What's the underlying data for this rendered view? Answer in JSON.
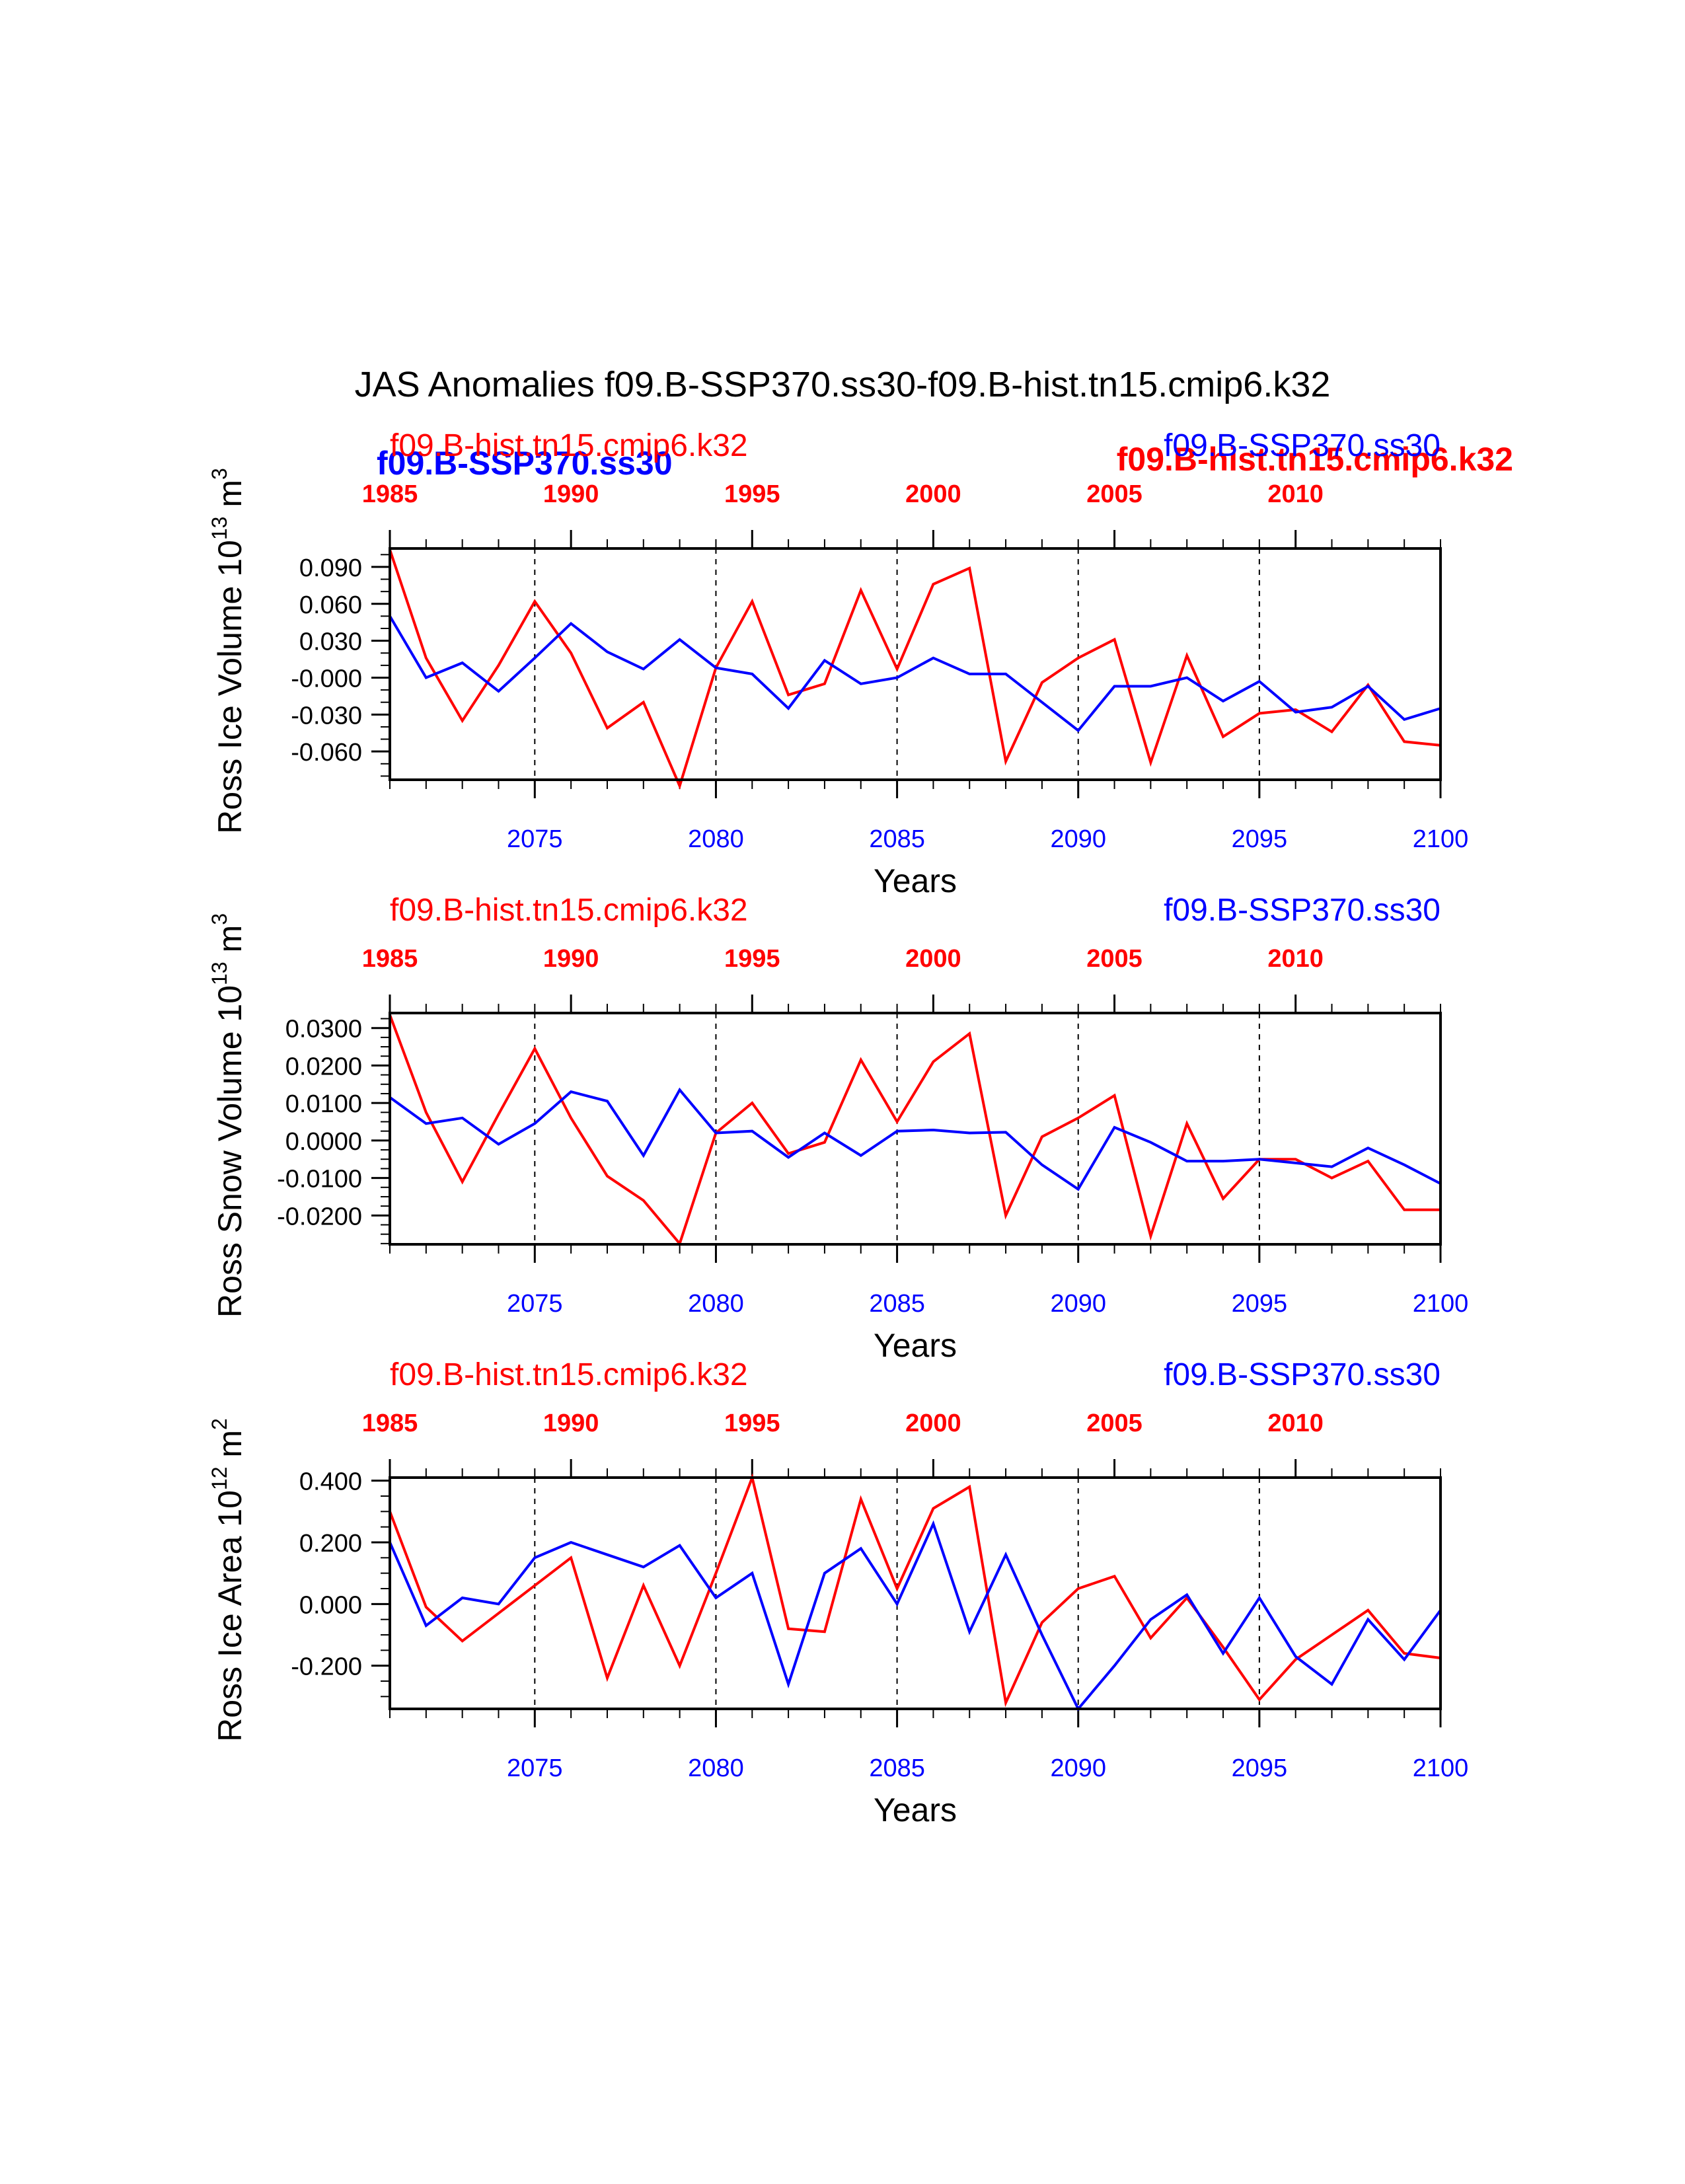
{
  "title": "JAS Anomalies f09.B-SSP370.ss30-f09.B-hist.tn15.cmip6.k32",
  "overlay_labels": {
    "blue_bold": "f09.B-SSP370.ss30",
    "red_bold": "f09.B-hist.tn15.cmip6.k32"
  },
  "colors": {
    "hist": "#ff0000",
    "ssp": "#0000ff",
    "axes": "#000000"
  },
  "chart_data": [
    {
      "type": "line",
      "ylabel": "Ross Ice Volume 10",
      "ylabel_exp": "13",
      "ylabel_unit_base": " m",
      "ylabel_unit_exp": "3",
      "xlabel": "Years",
      "left_title": "f09.B-hist.tn15.cmip6.k32",
      "right_title": "f09.B-SSP370.ss30",
      "ylim": [
        -0.083,
        0.105
      ],
      "yticks": [
        0.09,
        0.06,
        0.03,
        0.0,
        -0.03,
        -0.06
      ],
      "ytick_labels": [
        "0.090",
        "0.060",
        "0.030",
        "-0.000",
        "-0.030",
        "-0.060"
      ],
      "yminor_step": 0.01,
      "bottom_x": {
        "range": [
          2071,
          2100
        ],
        "ticks": [
          2075,
          2080,
          2085,
          2090,
          2095,
          2100
        ],
        "labels": [
          "2075",
          "2080",
          "2085",
          "2090",
          "2095",
          "2100"
        ]
      },
      "top_x": {
        "range": [
          1985,
          2014
        ],
        "ticks": [
          1985,
          1990,
          1995,
          2000,
          2005,
          2010
        ],
        "labels": [
          "1985",
          "1990",
          "1995",
          "2000",
          "2005",
          "2010"
        ]
      },
      "vlines": [
        2075,
        2080,
        2085,
        2090,
        2095
      ],
      "series": [
        {
          "name": "f09.B-hist.tn15.cmip6.k32",
          "color": "#ff0000",
          "years": [
            1985,
            1986,
            1987,
            1988,
            1989,
            1990,
            1991,
            1992,
            1993,
            1994,
            1995,
            1996,
            1997,
            1998,
            1999,
            2000,
            2001,
            2002,
            2003,
            2004,
            2005,
            2006,
            2007,
            2008,
            2009,
            2010,
            2011,
            2012,
            2013,
            2014
          ],
          "values": [
            0.104,
            0.016,
            -0.035,
            0.01,
            0.062,
            0.02,
            -0.041,
            -0.02,
            -0.088,
            0.008,
            0.062,
            -0.014,
            -0.005,
            0.071,
            0.007,
            0.076,
            0.089,
            -0.068,
            -0.004,
            0.016,
            0.031,
            -0.069,
            0.018,
            -0.048,
            -0.029,
            -0.026,
            -0.044,
            -0.006,
            -0.052,
            -0.055
          ]
        },
        {
          "name": "f09.B-SSP370.ss30",
          "color": "#0000ff",
          "years": [
            2071,
            2072,
            2073,
            2074,
            2075,
            2076,
            2077,
            2078,
            2079,
            2080,
            2081,
            2082,
            2083,
            2084,
            2085,
            2086,
            2087,
            2088,
            2089,
            2090,
            2091,
            2092,
            2093,
            2094,
            2095,
            2096,
            2097,
            2098,
            2099,
            2100
          ],
          "values": [
            0.05,
            0.0,
            0.012,
            -0.011,
            0.016,
            0.044,
            0.021,
            0.007,
            0.031,
            0.008,
            0.003,
            -0.025,
            0.014,
            -0.005,
            0.0,
            0.016,
            0.003,
            0.003,
            -0.02,
            -0.043,
            -0.007,
            -0.007,
            0.0,
            -0.019,
            -0.003,
            -0.028,
            -0.024,
            -0.007,
            -0.034,
            -0.025
          ]
        }
      ]
    },
    {
      "type": "line",
      "ylabel": "Ross Snow Volume 10",
      "ylabel_exp": "13",
      "ylabel_unit_base": " m",
      "ylabel_unit_exp": "3",
      "xlabel": "Years",
      "left_title": "f09.B-hist.tn15.cmip6.k32",
      "right_title": "f09.B-SSP370.ss30",
      "ylim": [
        -0.0277,
        0.034
      ],
      "yticks": [
        0.03,
        0.02,
        0.01,
        0.0,
        -0.01,
        -0.02
      ],
      "ytick_labels": [
        "0.0300",
        "0.0200",
        "0.0100",
        "0.0000",
        "-0.0100",
        "-0.0200"
      ],
      "yminor_step": 0.0025,
      "bottom_x": {
        "range": [
          2071,
          2100
        ],
        "ticks": [
          2075,
          2080,
          2085,
          2090,
          2095,
          2100
        ],
        "labels": [
          "2075",
          "2080",
          "2085",
          "2090",
          "2095",
          "2100"
        ]
      },
      "top_x": {
        "range": [
          1985,
          2014
        ],
        "ticks": [
          1985,
          1990,
          1995,
          2000,
          2005,
          2010
        ],
        "labels": [
          "1985",
          "1990",
          "1995",
          "2000",
          "2005",
          "2010"
        ]
      },
      "vlines": [
        2075,
        2080,
        2085,
        2090,
        2095
      ],
      "series": [
        {
          "name": "f09.B-hist.tn15.cmip6.k32",
          "color": "#ff0000",
          "years": [
            1985,
            1986,
            1987,
            1988,
            1989,
            1990,
            1991,
            1992,
            1993,
            1994,
            1995,
            1996,
            1997,
            1998,
            1999,
            2000,
            2001,
            2002,
            2003,
            2004,
            2005,
            2006,
            2007,
            2008,
            2009,
            2010,
            2011,
            2012,
            2013,
            2014
          ],
          "values": [
            0.0335,
            0.0075,
            -0.011,
            0.007,
            0.0245,
            0.006,
            -0.0095,
            -0.016,
            -0.0275,
            0.002,
            0.01,
            -0.0035,
            -0.0005,
            0.0215,
            0.005,
            0.021,
            0.0285,
            -0.02,
            0.001,
            0.006,
            0.012,
            -0.0255,
            0.0045,
            -0.0155,
            -0.005,
            -0.005,
            -0.01,
            -0.0055,
            -0.0185,
            -0.0185
          ]
        },
        {
          "name": "f09.B-SSP370.ss30",
          "color": "#0000ff",
          "years": [
            2071,
            2072,
            2073,
            2074,
            2075,
            2076,
            2077,
            2078,
            2079,
            2080,
            2081,
            2082,
            2083,
            2084,
            2085,
            2086,
            2087,
            2088,
            2089,
            2090,
            2091,
            2092,
            2093,
            2094,
            2095,
            2096,
            2097,
            2098,
            2099,
            2100
          ],
          "values": [
            0.0115,
            0.0045,
            0.006,
            -0.001,
            0.0045,
            0.013,
            0.0105,
            -0.004,
            0.0135,
            0.002,
            0.0025,
            -0.0045,
            0.002,
            -0.004,
            0.0025,
            0.0028,
            0.002,
            0.0022,
            -0.0065,
            -0.013,
            0.0035,
            -0.0005,
            -0.0055,
            -0.0055,
            -0.005,
            -0.006,
            -0.007,
            -0.002,
            -0.0065,
            -0.0115
          ]
        }
      ]
    },
    {
      "type": "line",
      "ylabel": "Ross Ice Area 10",
      "ylabel_exp": "12",
      "ylabel_unit_base": " m",
      "ylabel_unit_exp": "2",
      "xlabel": "Years",
      "left_title": "f09.B-hist.tn15.cmip6.k32",
      "right_title": "f09.B-SSP370.ss30",
      "ylim": [
        -0.34,
        0.41
      ],
      "yticks": [
        0.4,
        0.2,
        0.0,
        -0.2
      ],
      "ytick_labels": [
        "0.400",
        "0.200",
        "0.000",
        "-0.200"
      ],
      "yminor_step": 0.05,
      "bottom_x": {
        "range": [
          2071,
          2100
        ],
        "ticks": [
          2075,
          2080,
          2085,
          2090,
          2095,
          2100
        ],
        "labels": [
          "2075",
          "2080",
          "2085",
          "2090",
          "2095",
          "2100"
        ]
      },
      "top_x": {
        "range": [
          1985,
          2014
        ],
        "ticks": [
          1985,
          1990,
          1995,
          2000,
          2005,
          2010
        ],
        "labels": [
          "1985",
          "1990",
          "1995",
          "2000",
          "2005",
          "2010"
        ]
      },
      "vlines": [
        2075,
        2080,
        2085,
        2090,
        2095
      ],
      "series": [
        {
          "name": "f09.B-hist.tn15.cmip6.k32",
          "color": "#ff0000",
          "years": [
            1985,
            1986,
            1987,
            1988,
            1989,
            1990,
            1991,
            1992,
            1993,
            1994,
            1995,
            1996,
            1997,
            1998,
            1999,
            2000,
            2001,
            2002,
            2003,
            2004,
            2005,
            2006,
            2007,
            2008,
            2009,
            2010,
            2011,
            2012,
            2013,
            2014
          ],
          "values": [
            0.3,
            -0.01,
            -0.12,
            -0.03,
            0.06,
            0.15,
            -0.24,
            0.06,
            -0.2,
            0.1,
            0.41,
            -0.08,
            -0.09,
            0.34,
            0.05,
            0.31,
            0.38,
            -0.32,
            -0.06,
            0.05,
            0.09,
            -0.11,
            0.02,
            -0.14,
            -0.31,
            -0.18,
            -0.1,
            -0.02,
            -0.16,
            -0.175
          ]
        },
        {
          "name": "f09.B-SSP370.ss30",
          "color": "#0000ff",
          "years": [
            2071,
            2072,
            2073,
            2074,
            2075,
            2076,
            2077,
            2078,
            2079,
            2080,
            2081,
            2082,
            2083,
            2084,
            2085,
            2086,
            2087,
            2088,
            2089,
            2090,
            2091,
            2092,
            2093,
            2094,
            2095,
            2096,
            2097,
            2098,
            2099,
            2100
          ],
          "values": [
            0.2,
            -0.07,
            0.02,
            0.0,
            0.15,
            0.2,
            0.16,
            0.12,
            0.19,
            0.02,
            0.1,
            -0.26,
            0.1,
            0.18,
            0.0,
            0.26,
            -0.09,
            0.16,
            -0.1,
            -0.34,
            -0.2,
            -0.05,
            0.03,
            -0.16,
            0.02,
            -0.17,
            -0.26,
            -0.05,
            -0.18,
            -0.02
          ]
        }
      ]
    }
  ]
}
